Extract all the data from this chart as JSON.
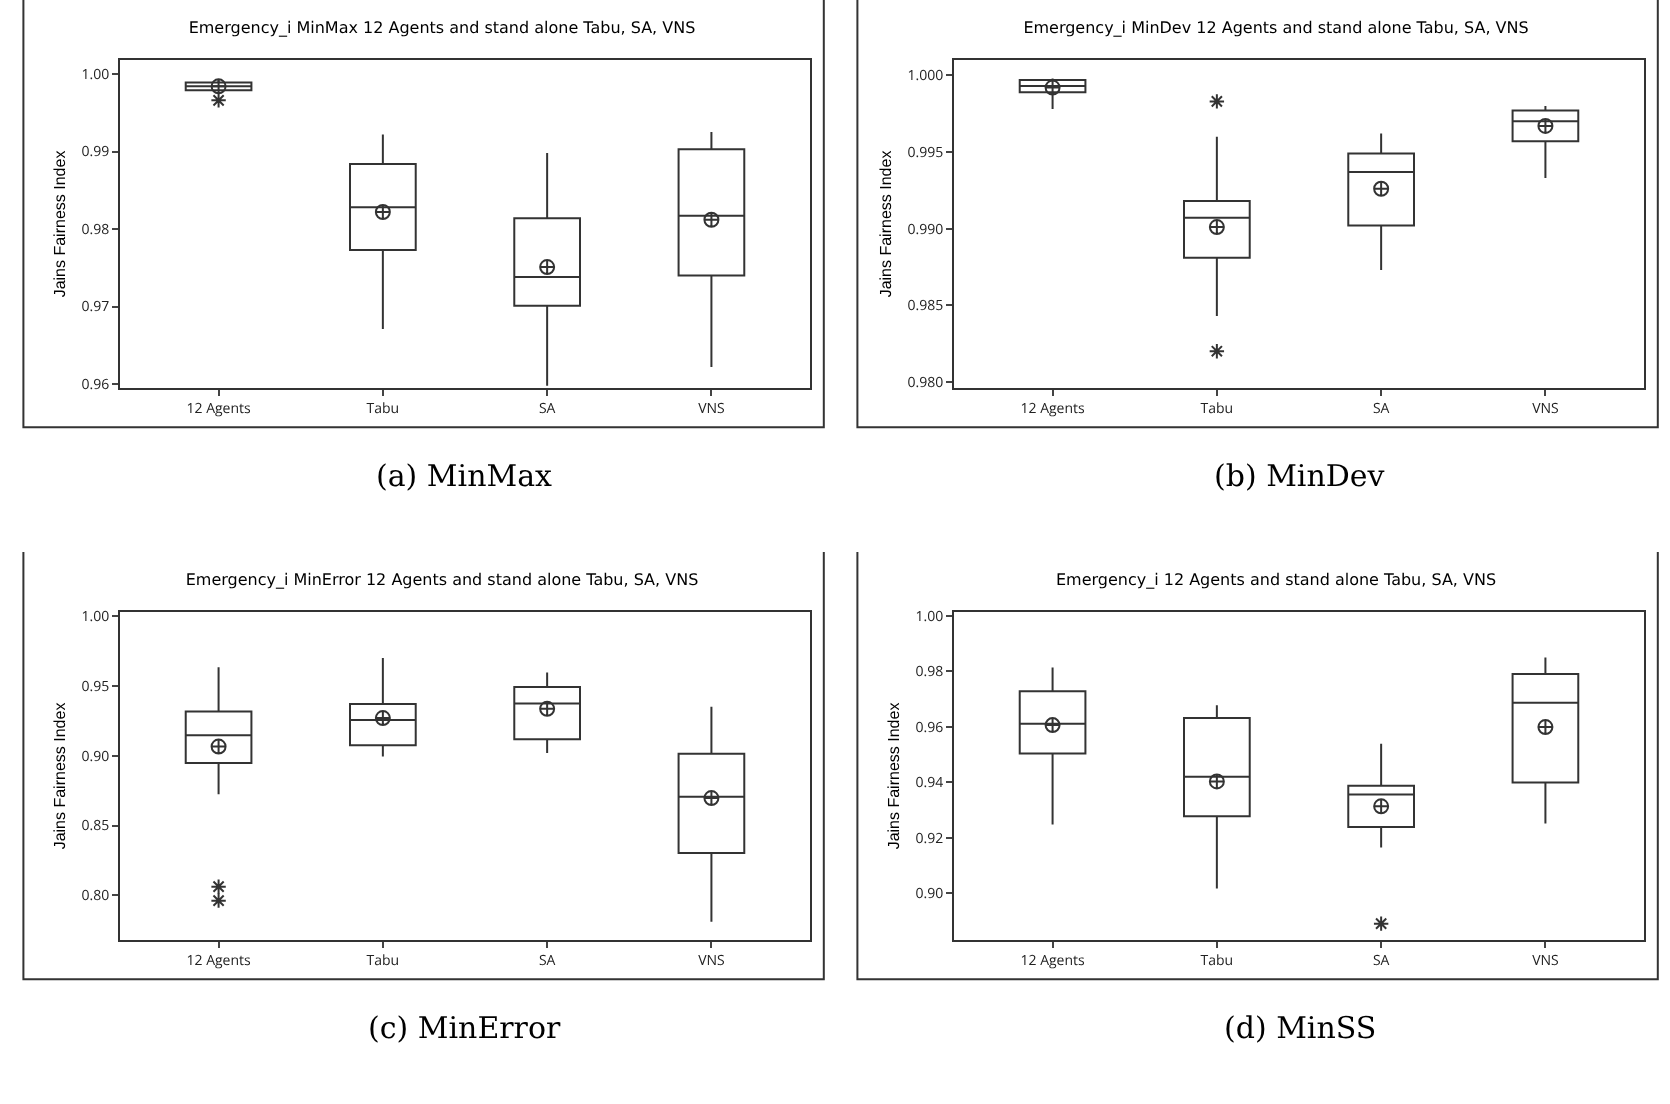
{
  "chart_data": [
    {
      "type": "box",
      "title": "Emergency_i MinMax 12 Agents and stand alone Tabu, SA, VNS",
      "ylabel": "Jains Fairness Index",
      "categories": [
        "12 Agents",
        "Tabu",
        "SA",
        "VNS"
      ],
      "ylim": [
        0.9595,
        1.0018
      ],
      "yticks": [
        0.96,
        0.97,
        0.98,
        0.99,
        {
          "value": 1,
          "label": "1.00"
        }
      ],
      "grid": false,
      "annotations": [
        "(a) MinMax"
      ],
      "boxes": [
        {
          "low": 0.9979,
          "q1": 0.9979,
          "median": 0.9984,
          "q3": 0.9989,
          "high": 0.9992,
          "mean": 0.9984,
          "outliers": [
            0.9966
          ]
        },
        {
          "low": 0.9671,
          "q1": 0.9773,
          "median": 0.9828,
          "q3": 0.9884,
          "high": 0.9922,
          "mean": 0.9822
        },
        {
          "low": 0.9598,
          "q1": 0.9701,
          "median": 0.9738,
          "q3": 0.9814,
          "high": 0.9898,
          "mean": 0.9751
        },
        {
          "low": 0.9622,
          "q1": 0.974,
          "median": 0.9817,
          "q3": 0.9903,
          "high": 0.9925,
          "mean": 0.9812
        }
      ]
    },
    {
      "type": "box",
      "title": "Emergency_i MinDev 12 Agents and stand alone Tabu, SA, VNS",
      "ylabel": "Jains Fairness Index",
      "categories": [
        "12 Agents",
        "Tabu",
        "SA",
        "VNS"
      ],
      "ylim": [
        0.9796,
        1.001
      ],
      "yticks": [
        {
          "value": 0.98,
          "label": "0.980"
        },
        0.985,
        {
          "value": 0.99,
          "label": "0.990"
        },
        0.995,
        {
          "value": 1,
          "label": "1.000"
        }
      ],
      "grid": false,
      "annotations": [
        "(b) MinDev"
      ],
      "boxes": [
        {
          "low": 0.9978,
          "q1": 0.9989,
          "median": 0.9993,
          "q3": 0.9997,
          "high": 0.9998,
          "mean": 0.9992
        },
        {
          "low": 0.9843,
          "q1": 0.9881,
          "median": 0.9907,
          "q3": 0.9918,
          "high": 0.996,
          "mean": 0.9901,
          "outliers": [
            0.9983,
            0.982
          ]
        },
        {
          "low": 0.9873,
          "q1": 0.9902,
          "median": 0.9937,
          "q3": 0.9949,
          "high": 0.9962,
          "mean": 0.9926
        },
        {
          "low": 0.9933,
          "q1": 0.9957,
          "median": 0.997,
          "q3": 0.9977,
          "high": 0.998,
          "mean": 0.9967
        }
      ]
    },
    {
      "type": "box",
      "title": "Emergency_i MinError 12 Agents and stand alone Tabu, SA, VNS",
      "ylabel": "Jains Fairness Index",
      "categories": [
        "12 Agents",
        "Tabu",
        "SA",
        "VNS"
      ],
      "ylim": [
        0.768,
        1.003
      ],
      "yticks": [
        {
          "value": 0.8,
          "label": "0.80"
        },
        0.85,
        {
          "value": 0.9,
          "label": "0.90"
        },
        0.95,
        {
          "value": 1,
          "label": "1.00"
        }
      ],
      "grid": false,
      "annotations": [
        "(c) MinError"
      ],
      "boxes": [
        {
          "low": 0.8725,
          "q1": 0.8948,
          "median": 0.9147,
          "q3": 0.9318,
          "high": 0.9635,
          "mean": 0.9066,
          "outliers": [
            0.8062,
            0.7962
          ]
        },
        {
          "low": 0.8995,
          "q1": 0.9076,
          "median": 0.9256,
          "q3": 0.937,
          "high": 0.9701,
          "mean": 0.927
        },
        {
          "low": 0.9019,
          "q1": 0.9118,
          "median": 0.9374,
          "q3": 0.9493,
          "high": 0.9597,
          "mean": 0.9336
        },
        {
          "low": 0.781,
          "q1": 0.8303,
          "median": 0.8706,
          "q3": 0.9014,
          "high": 0.9351,
          "mean": 0.8697
        }
      ]
    },
    {
      "type": "box",
      "title": "Emergency_i 12 Agents and stand alone Tabu, SA, VNS",
      "ylabel": "Jains Fairness Index",
      "categories": [
        "12 Agents",
        "Tabu",
        "SA",
        "VNS"
      ],
      "ylim": [
        0.8831,
        1.0014
      ],
      "yticks": [
        {
          "value": 0.9,
          "label": "0.90"
        },
        0.92,
        0.94,
        0.96,
        0.98,
        {
          "value": 1,
          "label": "1.00"
        }
      ],
      "grid": false,
      "annotations": [
        "(d) MinSS"
      ],
      "boxes": [
        {
          "low": 0.9248,
          "q1": 0.9504,
          "median": 0.9611,
          "q3": 0.9728,
          "high": 0.9814,
          "mean": 0.9606
        },
        {
          "low": 0.9017,
          "q1": 0.9277,
          "median": 0.942,
          "q3": 0.9632,
          "high": 0.9678,
          "mean": 0.9403
        },
        {
          "low": 0.9165,
          "q1": 0.9239,
          "median": 0.9356,
          "q3": 0.9387,
          "high": 0.9539,
          "mean": 0.9313,
          "outliers": [
            0.889
          ]
        },
        {
          "low": 0.9251,
          "q1": 0.9399,
          "median": 0.9687,
          "q3": 0.979,
          "high": 0.985,
          "mean": 0.9599
        }
      ]
    }
  ]
}
